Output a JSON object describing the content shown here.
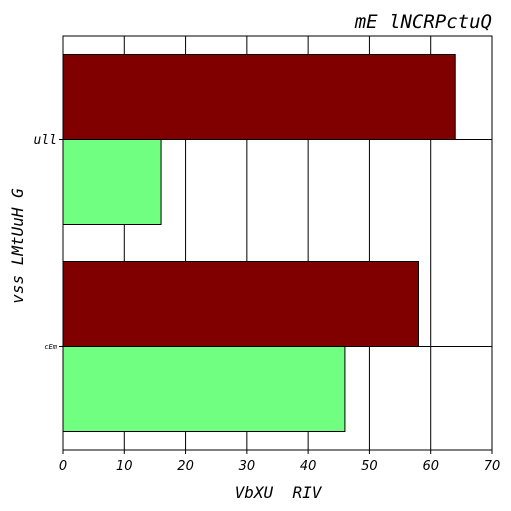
{
  "chart_data": {
    "type": "bar",
    "orientation": "horizontal",
    "title": "mE lNCRPctuQ",
    "xlabel": "VbXU  RIV",
    "ylabel": "vss LMtUuH G",
    "categories": [
      "ull",
      "cEm"
    ],
    "series": [
      {
        "values": [
          64,
          58
        ],
        "color": "#800000"
      },
      {
        "values": [
          16,
          46
        ],
        "color": "#70ff80"
      }
    ],
    "xlim": [
      0,
      70
    ],
    "xticks": [
      0,
      10,
      20,
      30,
      40,
      50,
      60,
      70
    ],
    "grid": true,
    "legend": "none"
  }
}
